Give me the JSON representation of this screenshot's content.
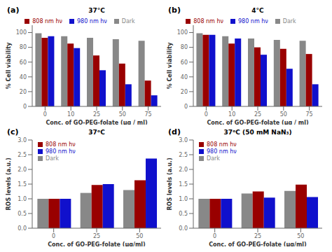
{
  "chart_data": [
    {
      "type": "bar",
      "title": "37°C",
      "annotations": [
        "(a)"
      ],
      "x_label": "Conc. of GO-PEG-folate (μg / ml)",
      "y_label": "% Cell viability",
      "categories": [
        "0",
        "10",
        "25",
        "50",
        "75"
      ],
      "series": [
        {
          "name": "Dark",
          "color": "#888888",
          "values": [
            99,
            95,
            93,
            91,
            89
          ]
        },
        {
          "name": "808 nm hν",
          "color": "#990000",
          "values": [
            93,
            85,
            69,
            58,
            35
          ]
        },
        {
          "name": "980 nm hν",
          "color": "#1010CC",
          "values": [
            95,
            79,
            49,
            30,
            15
          ]
        }
      ],
      "ylim": [
        0,
        110
      ],
      "yticks": [
        0,
        20,
        40,
        60,
        80,
        100
      ],
      "grid": false,
      "legend": "top"
    },
    {
      "type": "bar",
      "title": "4°C",
      "annotations": [
        "(b)"
      ],
      "x_label": "Conc. of GO-PEG-folate (μg / ml)",
      "y_label": "% Cell viability",
      "categories": [
        "0",
        "10",
        "25",
        "50",
        "75"
      ],
      "series": [
        {
          "name": "Dark",
          "color": "#888888",
          "values": [
            99,
            95,
            92,
            90,
            89
          ]
        },
        {
          "name": "808 nm hν",
          "color": "#990000",
          "values": [
            97,
            85,
            80,
            78,
            71
          ]
        },
        {
          "name": "980 nm hν",
          "color": "#1010CC",
          "values": [
            97,
            92,
            70,
            51,
            30
          ]
        }
      ],
      "ylim": [
        0,
        110
      ],
      "yticks": [
        0,
        20,
        40,
        60,
        80,
        100
      ],
      "grid": false,
      "legend": "top"
    },
    {
      "type": "bar",
      "title": "37ᵒC",
      "annotations": [
        "(c)"
      ],
      "x_label": "Conc. of GO-PEG-folate  (μg/ml)",
      "y_label": "ROS levels (a.u.)",
      "categories": [
        "0",
        "25",
        "50"
      ],
      "series": [
        {
          "name": "Dark",
          "color": "#888888",
          "values": [
            1.0,
            1.2,
            1.3
          ]
        },
        {
          "name": "808 nm hν",
          "color": "#990000",
          "values": [
            1.0,
            1.47,
            1.63
          ]
        },
        {
          "name": "980 nm hν",
          "color": "#1010CC",
          "values": [
            1.0,
            1.5,
            2.37
          ]
        }
      ],
      "ylim": [
        0,
        3
      ],
      "yticks": [
        {
          "value": 0,
          "label": "0.0"
        },
        0.5,
        {
          "value": 1,
          "label": "1.0"
        },
        1.5,
        {
          "value": 2,
          "label": "2.0"
        },
        2.5,
        {
          "value": 3,
          "label": "3.0"
        }
      ],
      "grid": false,
      "legend": "upper left"
    },
    {
      "type": "bar",
      "title": "37ᵒC (50 mM NaN₃)",
      "annotations": [
        "(d)"
      ],
      "x_label": "Conc. of GO-PEG-folate  (μg/ml)",
      "y_label": "ROS levels (a.u.)",
      "categories": [
        "0",
        "25",
        "50"
      ],
      "series": [
        {
          "name": "Dark",
          "color": "#888888",
          "values": [
            1.0,
            1.18,
            1.27
          ]
        },
        {
          "name": "808 nm hν",
          "color": "#990000",
          "values": [
            1.0,
            1.25,
            1.48
          ]
        },
        {
          "name": "980 nm hν",
          "color": "#1010CC",
          "values": [
            1.0,
            1.04,
            1.06
          ]
        }
      ],
      "ylim": [
        0,
        3
      ],
      "yticks": [
        {
          "value": 0,
          "label": "0.0"
        },
        0.5,
        {
          "value": 1,
          "label": "1.0"
        },
        1.5,
        {
          "value": 2,
          "label": "2.0"
        },
        2.5,
        {
          "value": 3,
          "label": "3.0"
        }
      ],
      "grid": false,
      "legend": "upper left"
    }
  ]
}
